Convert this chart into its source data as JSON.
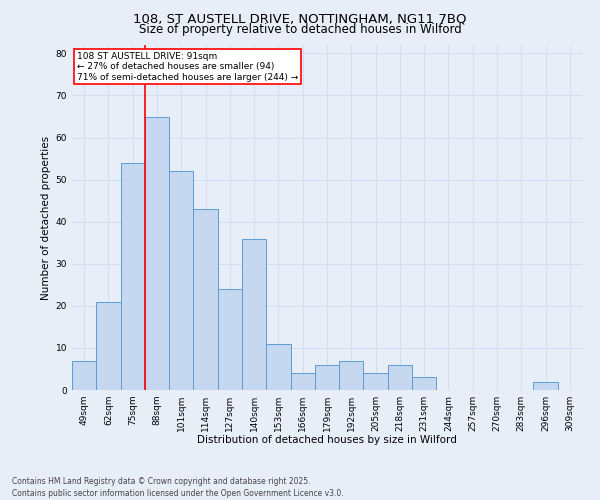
{
  "title_line1": "108, ST AUSTELL DRIVE, NOTTINGHAM, NG11 7BQ",
  "title_line2": "Size of property relative to detached houses in Wilford",
  "xlabel": "Distribution of detached houses by size in Wilford",
  "ylabel": "Number of detached properties",
  "categories": [
    "49sqm",
    "62sqm",
    "75sqm",
    "88sqm",
    "101sqm",
    "114sqm",
    "127sqm",
    "140sqm",
    "153sqm",
    "166sqm",
    "179sqm",
    "192sqm",
    "205sqm",
    "218sqm",
    "231sqm",
    "244sqm",
    "257sqm",
    "270sqm",
    "283sqm",
    "296sqm",
    "309sqm"
  ],
  "values": [
    7,
    21,
    54,
    65,
    52,
    43,
    24,
    36,
    11,
    4,
    6,
    7,
    4,
    6,
    3,
    0,
    0,
    0,
    0,
    2,
    0
  ],
  "bar_color": "#c5d8f0",
  "bar_edge_color": "#5b9bd5",
  "red_line_index": 3,
  "annotation_text_line1": "108 ST AUSTELL DRIVE: 91sqm",
  "annotation_text_line2": "← 27% of detached houses are smaller (94)",
  "annotation_text_line3": "71% of semi-detached houses are larger (244) →",
  "annotation_box_color": "white",
  "annotation_box_edge_color": "red",
  "ylim": [
    0,
    82
  ],
  "yticks": [
    0,
    10,
    20,
    30,
    40,
    50,
    60,
    70,
    80
  ],
  "grid_color": "#d0dff0",
  "background_color": "#e8eef8",
  "footer_line1": "Contains HM Land Registry data © Crown copyright and database right 2025.",
  "footer_line2": "Contains public sector information licensed under the Open Government Licence v3.0.",
  "title_fontsize": 9.5,
  "subtitle_fontsize": 8.5,
  "axis_label_fontsize": 7.5,
  "tick_fontsize": 6.5,
  "annotation_fontsize": 6.5,
  "footer_fontsize": 5.5
}
